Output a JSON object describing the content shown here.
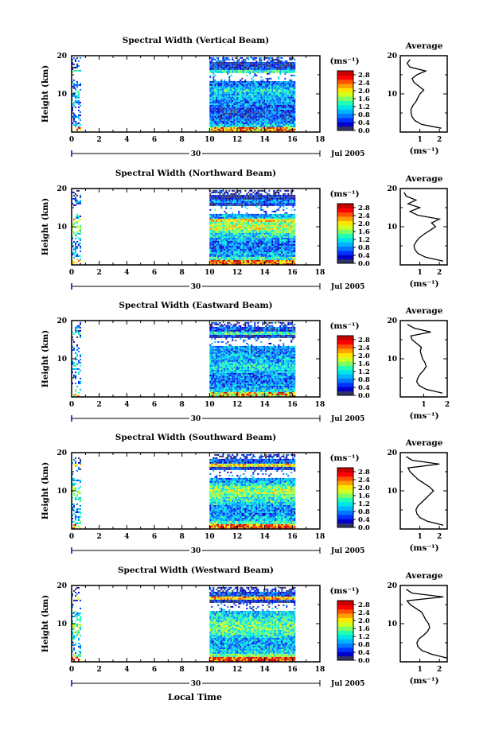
{
  "figure": {
    "x_title": "Local Time",
    "date_day": "30",
    "date_label": "Jul 2005",
    "ylabel": "Height (km)",
    "avg_title": "Average",
    "cbar_unit": "(ms⁻¹)",
    "avg_unit": "(ms⁻¹)",
    "x_tick_labels": [
      "0",
      "2",
      "4",
      "6",
      "8",
      "10",
      "12",
      "14",
      "16",
      "18"
    ],
    "y_tick_labels": [
      "20",
      "10"
    ],
    "cbar_tick_labels": [
      "2.8",
      "2.4",
      "2.0",
      "1.6",
      "1.2",
      "0.8",
      "0.4",
      "0.0"
    ],
    "colorscale": [
      "#323266",
      "#0000c8",
      "#0032ff",
      "#0078ff",
      "#00b4ff",
      "#00e6e6",
      "#20ffb4",
      "#80ff60",
      "#d0ff20",
      "#ffe600",
      "#ffa000",
      "#ff5000",
      "#ff0000",
      "#c80000"
    ]
  },
  "chart_data": [
    {
      "type": "heatmap",
      "title": "Spectral Width (Vertical Beam)",
      "xlabel": "Local Time",
      "ylabel": "Height (km)",
      "xlim": [
        0,
        18
      ],
      "ylim": [
        0,
        20
      ],
      "clim": [
        0.0,
        3.0
      ],
      "data_time_ranges": [
        [
          0.0,
          0.6
        ],
        [
          10.0,
          16.2
        ]
      ],
      "average_profile": {
        "xlim": [
          0,
          2.4
        ],
        "xticks": [
          "1",
          "2"
        ],
        "height": [
          1,
          2,
          3,
          4,
          5,
          6,
          7,
          8,
          9,
          10,
          11,
          12,
          13,
          14,
          15,
          16,
          17,
          18,
          19
        ],
        "value": [
          2.1,
          1.1,
          0.75,
          0.6,
          0.55,
          0.55,
          0.65,
          0.8,
          0.9,
          1.0,
          1.2,
          0.95,
          0.7,
          0.6,
          0.85,
          1.3,
          0.5,
          0.35,
          0.5
        ]
      }
    },
    {
      "type": "heatmap",
      "title": "Spectral Width (Northward Beam)",
      "xlabel": "Local Time",
      "ylabel": "Height (km)",
      "xlim": [
        0,
        18
      ],
      "ylim": [
        0,
        20
      ],
      "clim": [
        0.0,
        3.0
      ],
      "data_time_ranges": [
        [
          0.0,
          0.6
        ],
        [
          10.0,
          16.2
        ]
      ],
      "average_profile": {
        "xlim": [
          0,
          2.4
        ],
        "xticks": [
          "1",
          "2"
        ],
        "height": [
          1,
          2,
          3,
          4,
          5,
          6,
          7,
          8,
          9,
          10,
          11,
          12,
          13,
          14,
          15,
          16,
          17,
          18,
          19
        ],
        "value": [
          2.2,
          1.3,
          0.9,
          0.75,
          0.7,
          0.8,
          0.95,
          1.2,
          1.5,
          1.8,
          1.6,
          2.0,
          0.9,
          0.5,
          1.0,
          0.4,
          0.8,
          0.3,
          0.2
        ]
      }
    },
    {
      "type": "heatmap",
      "title": "Spectral Width (Eastward Beam)",
      "xlabel": "Local Time",
      "ylabel": "Height (km)",
      "xlim": [
        0,
        18
      ],
      "ylim": [
        0,
        20
      ],
      "clim": [
        0.0,
        3.0
      ],
      "data_time_ranges": [
        [
          0.0,
          0.6
        ],
        [
          10.0,
          16.2
        ]
      ],
      "average_profile": {
        "xlim": [
          0,
          2.0
        ],
        "xticks": [
          "1",
          "2"
        ],
        "height": [
          1,
          2,
          3,
          4,
          5,
          6,
          7,
          8,
          9,
          10,
          11,
          12,
          13,
          14,
          15,
          16,
          17,
          18,
          19
        ],
        "value": [
          1.8,
          1.1,
          0.8,
          0.7,
          0.75,
          0.85,
          1.0,
          1.1,
          1.05,
          0.95,
          0.9,
          0.85,
          0.9,
          0.7,
          0.5,
          0.45,
          1.3,
          0.6,
          0.3
        ]
      }
    },
    {
      "type": "heatmap",
      "title": "Spectral Width (Southward Beam)",
      "xlabel": "Local Time",
      "ylabel": "Height (km)",
      "xlim": [
        0,
        18
      ],
      "ylim": [
        0,
        20
      ],
      "clim": [
        0.0,
        3.0
      ],
      "data_time_ranges": [
        [
          0.0,
          0.6
        ],
        [
          10.0,
          16.2
        ]
      ],
      "average_profile": {
        "xlim": [
          0,
          2.4
        ],
        "xticks": [
          "1",
          "2"
        ],
        "height": [
          1,
          2,
          3,
          4,
          5,
          6,
          7,
          8,
          9,
          10,
          11,
          12,
          13,
          14,
          15,
          16,
          17,
          18,
          19
        ],
        "value": [
          2.2,
          1.4,
          1.0,
          0.85,
          0.8,
          0.9,
          1.1,
          1.3,
          1.5,
          1.7,
          1.5,
          1.2,
          0.9,
          0.7,
          0.5,
          0.4,
          2.0,
          0.6,
          0.3
        ]
      }
    },
    {
      "type": "heatmap",
      "title": "Spectral Width (Westward Beam)",
      "xlabel": "Local Time",
      "ylabel": "Height (km)",
      "xlim": [
        0,
        18
      ],
      "ylim": [
        0,
        20
      ],
      "clim": [
        0.0,
        3.0
      ],
      "data_time_ranges": [
        [
          0.0,
          0.6
        ],
        [
          10.0,
          16.2
        ]
      ],
      "average_profile": {
        "xlim": [
          0,
          2.4
        ],
        "xticks": [
          "1",
          "2"
        ],
        "height": [
          1,
          2,
          3,
          4,
          5,
          6,
          7,
          8,
          9,
          10,
          11,
          12,
          13,
          14,
          15,
          16,
          17,
          18,
          19
        ],
        "value": [
          2.4,
          1.6,
          1.1,
          0.9,
          0.85,
          0.95,
          1.2,
          1.4,
          1.5,
          1.45,
          1.3,
          1.2,
          1.1,
          0.8,
          0.5,
          0.35,
          2.2,
          0.6,
          0.3
        ]
      }
    }
  ]
}
